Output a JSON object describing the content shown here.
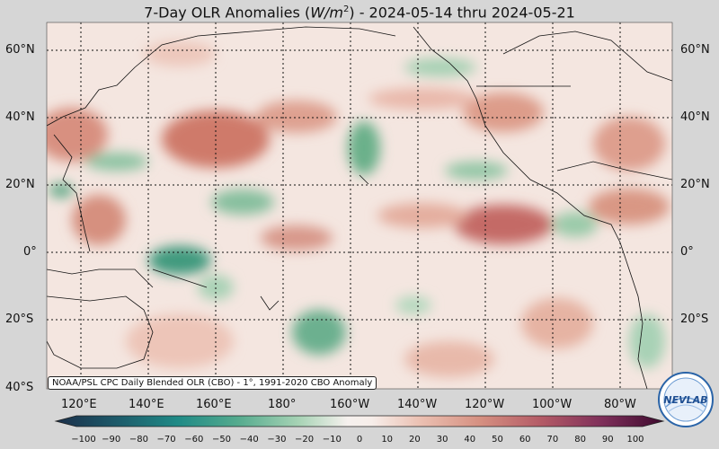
{
  "title": {
    "main": "7-Day OLR Anomalies (",
    "unit": "W/m",
    "sup": "2",
    "rest": ") - 2024-05-14 thru 2024-05-21"
  },
  "latitudes": [
    "60°N",
    "40°N",
    "20°N",
    "0°",
    "20°S",
    "40°S"
  ],
  "longitudes": [
    "120°E",
    "140°E",
    "160°E",
    "180°",
    "160°W",
    "140°W",
    "120°W",
    "100°W",
    "80°W"
  ],
  "credit": "NOAA/PSL CPC Daily Blended OLR (CBO) - 1°, 1991-2020 CBO Anomaly",
  "colorbar": {
    "ticks": [
      "−100",
      "−90",
      "−80",
      "−70",
      "−60",
      "−50",
      "−40",
      "−30",
      "−20",
      "−10",
      "0",
      "10",
      "20",
      "30",
      "40",
      "50",
      "60",
      "70",
      "80",
      "90",
      "100"
    ],
    "low_color": "#0f2a45",
    "high_color": "#3e0a2e"
  },
  "logo_text": "NEVLAB"
}
